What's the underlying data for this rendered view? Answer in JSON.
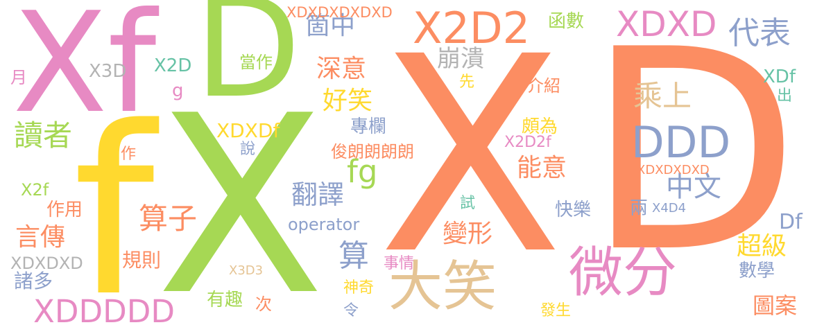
{
  "colors": {
    "orange": "#fc8d62",
    "green": "#a6d854",
    "pink": "#e78ac3",
    "yellow": "#ffd92f",
    "blue": "#8da0cb",
    "tan": "#e5c494",
    "gray": "#b3b3b3",
    "teal": "#66c2a5"
  },
  "words": [
    {
      "text": "X",
      "color": "orange"
    },
    {
      "text": "D",
      "color": "orange"
    },
    {
      "text": "X",
      "color": "green"
    },
    {
      "text": "f",
      "color": "yellow"
    },
    {
      "text": "Xf",
      "color": "pink"
    },
    {
      "text": "D",
      "color": "green"
    },
    {
      "text": "微分",
      "color": "pink"
    },
    {
      "text": "大笑",
      "color": "tan"
    },
    {
      "text": "X2D2",
      "color": "orange"
    },
    {
      "text": "DDD",
      "color": "blue"
    },
    {
      "text": "XDXD",
      "color": "pink"
    },
    {
      "text": "代表",
      "color": "blue"
    },
    {
      "text": "XDDDDD",
      "color": "pink"
    },
    {
      "text": "乘上",
      "color": "tan"
    },
    {
      "text": "算子",
      "color": "orange"
    },
    {
      "text": "讀者",
      "color": "green"
    },
    {
      "text": "fg",
      "color": "green"
    },
    {
      "text": "中文",
      "color": "blue"
    },
    {
      "text": "深意",
      "color": "orange"
    },
    {
      "text": "好笑",
      "color": "yellow"
    },
    {
      "text": "能意",
      "color": "orange"
    },
    {
      "text": "崩潰",
      "color": "gray"
    },
    {
      "text": "箇中",
      "color": "blue"
    },
    {
      "text": "翻譯",
      "color": "blue"
    },
    {
      "text": "變形",
      "color": "orange"
    },
    {
      "text": "算",
      "color": "blue"
    },
    {
      "text": "言傳",
      "color": "orange"
    },
    {
      "text": "超級",
      "color": "yellow"
    },
    {
      "text": "圖案",
      "color": "orange"
    },
    {
      "text": "XDXDf",
      "color": "yellow"
    },
    {
      "text": "X2D2f",
      "color": "pink"
    },
    {
      "text": "operator",
      "color": "blue"
    },
    {
      "text": "俊朗朗朗朗",
      "color": "orange"
    },
    {
      "text": "XDXDXDXDXD",
      "color": "orange"
    },
    {
      "text": "XDXDXDXD",
      "color": "orange"
    },
    {
      "text": "XDXDXD",
      "color": "gray"
    },
    {
      "text": "X2D",
      "color": "teal"
    },
    {
      "text": "X3D",
      "color": "gray"
    },
    {
      "text": "X2f",
      "color": "green"
    },
    {
      "text": "當作",
      "color": "green"
    },
    {
      "text": "作用",
      "color": "orange"
    },
    {
      "text": "諸多",
      "color": "blue"
    },
    {
      "text": "規則",
      "color": "orange"
    },
    {
      "text": "有趣",
      "color": "green"
    },
    {
      "text": "Df",
      "color": "blue"
    },
    {
      "text": "XDf",
      "color": "teal"
    },
    {
      "text": "數學",
      "color": "blue"
    },
    {
      "text": "函數",
      "color": "green"
    },
    {
      "text": "專欄",
      "color": "blue"
    },
    {
      "text": "頗為",
      "color": "yellow"
    },
    {
      "text": "快樂",
      "color": "blue"
    },
    {
      "text": "兩",
      "color": "blue"
    },
    {
      "text": "X4D4",
      "color": "blue"
    },
    {
      "text": "介紹",
      "color": "orange"
    },
    {
      "text": "說",
      "color": "blue"
    },
    {
      "text": "作",
      "color": "orange"
    },
    {
      "text": "X3D3",
      "color": "tan"
    },
    {
      "text": "次",
      "color": "orange"
    },
    {
      "text": "令",
      "color": "blue"
    },
    {
      "text": "神奇",
      "color": "yellow"
    },
    {
      "text": "事情",
      "color": "pink"
    },
    {
      "text": "試",
      "color": "teal"
    },
    {
      "text": "先",
      "color": "yellow"
    },
    {
      "text": "月",
      "color": "pink"
    },
    {
      "text": "g",
      "color": "pink"
    },
    {
      "text": "出",
      "color": "teal"
    },
    {
      "text": "發生",
      "color": "yellow"
    }
  ]
}
